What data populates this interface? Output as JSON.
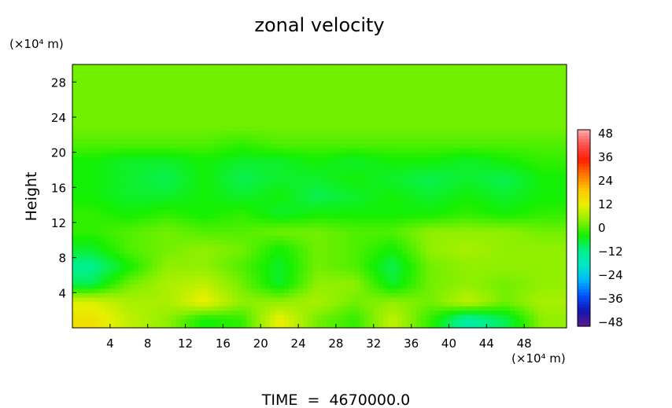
{
  "chart_data": {
    "type": "heatmap",
    "title": "zonal velocity",
    "xlabel": "",
    "ylabel": "Height",
    "x_unit": "(×10⁴ m)",
    "y_unit": "(×10⁴ m)",
    "xlim": [
      0,
      52.5
    ],
    "ylim": [
      0,
      30
    ],
    "x_ticks": [
      4,
      8,
      12,
      16,
      20,
      24,
      28,
      32,
      36,
      40,
      44,
      48
    ],
    "y_ticks": [
      4,
      8,
      12,
      16,
      20,
      24,
      28
    ],
    "grid": false,
    "footer": "TIME  =  4670000.0",
    "colorbar": {
      "ticks": [
        48,
        36,
        24,
        12,
        0,
        -12,
        -24,
        -36,
        -48
      ],
      "range": [
        -48,
        48
      ],
      "colors": [
        "#5a1a8c",
        "#1414b4",
        "#0050ff",
        "#00b4ff",
        "#00e6c8",
        "#00f08c",
        "#14f000",
        "#8cf000",
        "#e6f000",
        "#ffc800",
        "#ff7800",
        "#ff1e00",
        "#ff5050",
        "#ffaaaa"
      ]
    },
    "field": {
      "description_rows_bottom_to_top": true,
      "y_centers": [
        1,
        3,
        5,
        7,
        9,
        11,
        13,
        15,
        17,
        19,
        21,
        23,
        25,
        27,
        29
      ],
      "x_centers": [
        2,
        6,
        10,
        14,
        18,
        22,
        26,
        30,
        34,
        38,
        42,
        46,
        50
      ],
      "values": [
        [
          14,
          8,
          4,
          -4,
          -2,
          12,
          2,
          -2,
          8,
          -2,
          -14,
          -8,
          4
        ],
        [
          10,
          6,
          6,
          12,
          4,
          4,
          6,
          2,
          4,
          2,
          8,
          2,
          6
        ],
        [
          -8,
          2,
          6,
          8,
          2,
          -6,
          4,
          4,
          -6,
          2,
          4,
          2,
          4
        ],
        [
          -12,
          -4,
          4,
          4,
          0,
          -6,
          2,
          0,
          -8,
          2,
          4,
          4,
          4
        ],
        [
          -6,
          0,
          2,
          4,
          2,
          -4,
          2,
          0,
          -4,
          4,
          6,
          4,
          4
        ],
        [
          -2,
          0,
          2,
          0,
          0,
          2,
          2,
          0,
          0,
          4,
          4,
          4,
          2
        ],
        [
          -2,
          -4,
          -2,
          -4,
          -2,
          -6,
          -4,
          -4,
          -4,
          -4,
          -2,
          -4,
          -2
        ],
        [
          -4,
          -6,
          -6,
          -4,
          -6,
          -4,
          -8,
          -6,
          -4,
          -6,
          -4,
          -6,
          -4
        ],
        [
          -4,
          -6,
          -8,
          -4,
          -8,
          -6,
          -6,
          -4,
          -6,
          -8,
          -6,
          -8,
          -4
        ],
        [
          -4,
          -6,
          -6,
          -4,
          -6,
          -6,
          -4,
          -6,
          -4,
          -4,
          -6,
          -4,
          -2
        ],
        [
          0,
          0,
          0,
          0,
          -2,
          0,
          0,
          0,
          0,
          0,
          0,
          0,
          0
        ],
        [
          2,
          2,
          2,
          2,
          2,
          2,
          2,
          2,
          2,
          2,
          2,
          2,
          2
        ],
        [
          2,
          2,
          2,
          2,
          2,
          2,
          2,
          2,
          2,
          2,
          2,
          2,
          2
        ],
        [
          2,
          2,
          2,
          2,
          2,
          2,
          2,
          2,
          2,
          2,
          2,
          2,
          2
        ],
        [
          2,
          2,
          2,
          2,
          2,
          2,
          2,
          2,
          2,
          2,
          2,
          2,
          2
        ]
      ]
    }
  }
}
